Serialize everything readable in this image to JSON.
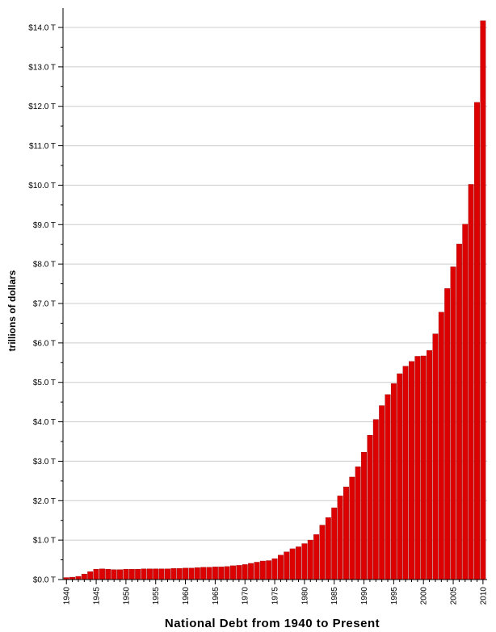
{
  "chart_data": {
    "type": "bar",
    "title": "National Debt from 1940 to Present",
    "xlabel": "",
    "ylabel": "trillions of dollars",
    "x": [
      1940,
      1941,
      1942,
      1943,
      1944,
      1945,
      1946,
      1947,
      1948,
      1949,
      1950,
      1951,
      1952,
      1953,
      1954,
      1955,
      1956,
      1957,
      1958,
      1959,
      1960,
      1961,
      1962,
      1963,
      1964,
      1965,
      1966,
      1967,
      1968,
      1969,
      1970,
      1971,
      1972,
      1973,
      1974,
      1975,
      1976,
      1977,
      1978,
      1979,
      1980,
      1981,
      1982,
      1983,
      1984,
      1985,
      1986,
      1987,
      1988,
      1989,
      1990,
      1991,
      1992,
      1993,
      1994,
      1995,
      1996,
      1997,
      1998,
      1999,
      2000,
      2001,
      2002,
      2003,
      2004,
      2005,
      2006,
      2007,
      2008,
      2009,
      2010
    ],
    "values": [
      0.05,
      0.06,
      0.08,
      0.14,
      0.2,
      0.26,
      0.27,
      0.26,
      0.25,
      0.25,
      0.26,
      0.26,
      0.26,
      0.27,
      0.27,
      0.27,
      0.27,
      0.27,
      0.28,
      0.28,
      0.29,
      0.29,
      0.3,
      0.31,
      0.31,
      0.32,
      0.32,
      0.33,
      0.35,
      0.36,
      0.38,
      0.41,
      0.44,
      0.47,
      0.48,
      0.53,
      0.62,
      0.7,
      0.78,
      0.83,
      0.91,
      1.0,
      1.14,
      1.38,
      1.57,
      1.82,
      2.12,
      2.35,
      2.6,
      2.86,
      3.23,
      3.66,
      4.06,
      4.41,
      4.69,
      4.97,
      5.22,
      5.41,
      5.53,
      5.66,
      5.67,
      5.81,
      6.23,
      6.78,
      7.38,
      7.93,
      8.51,
      9.01,
      10.02,
      12.1,
      14.17
    ],
    "ylim": [
      0,
      14.0
    ],
    "yticks": [
      0,
      1,
      2,
      3,
      4,
      5,
      6,
      7,
      8,
      9,
      10,
      11,
      12,
      13,
      14
    ],
    "ytick_labels": [
      "$0.0 T",
      "$1.0 T",
      "$2.0 T",
      "$3.0 T",
      "$4.0 T",
      "$5.0 T",
      "$6.0 T",
      "$7.0 T",
      "$8.0 T",
      "$9.0 T",
      "$10.0 T",
      "$11.0 T",
      "$12.0 T",
      "$13.0 T",
      "$14.0 T"
    ],
    "xtick_labels": [
      "1940",
      "1945",
      "1950",
      "1955",
      "1960",
      "1965",
      "1970",
      "1975",
      "1980",
      "1985",
      "1990",
      "1995",
      "2000",
      "2005",
      "2010"
    ],
    "grid": true,
    "bar_color": "#dd0000",
    "bar_outline_color": "#990000",
    "grid_color": "#cccccc"
  }
}
